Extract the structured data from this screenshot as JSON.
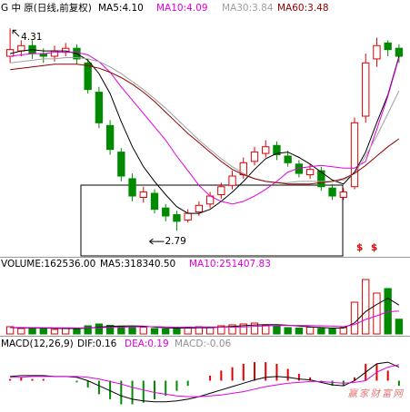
{
  "chart_data": [
    {
      "type": "candlestick",
      "title": "G 中 原(日线,前复权)",
      "open": [
        4.1,
        4.14,
        4.18,
        4.12,
        4.1,
        4.13,
        4.16,
        4.05,
        3.83,
        3.58,
        3.38,
        3.18,
        3.04,
        3.07,
        2.96,
        2.91,
        2.87,
        2.93,
        2.99,
        3.06,
        3.13,
        3.21,
        3.31,
        3.37,
        3.43,
        3.35,
        3.29,
        3.21,
        3.24,
        3.11,
        3.04,
        3.12,
        3.65,
        4.08,
        4.2,
        4.16
      ],
      "high": [
        4.31,
        4.22,
        4.22,
        4.16,
        4.18,
        4.2,
        4.19,
        4.08,
        3.87,
        3.62,
        3.41,
        3.22,
        3.12,
        3.1,
        2.99,
        2.94,
        2.95,
        3.01,
        3.08,
        3.15,
        3.24,
        3.34,
        3.42,
        3.47,
        3.46,
        3.39,
        3.32,
        3.29,
        3.27,
        3.14,
        3.11,
        3.64,
        4.12,
        4.24,
        4.22,
        4.19
      ],
      "low": [
        4.05,
        4.1,
        4.08,
        4.05,
        4.06,
        4.1,
        4.04,
        3.82,
        3.56,
        3.36,
        3.16,
        3.01,
        3.0,
        2.92,
        2.86,
        2.79,
        2.85,
        2.9,
        2.96,
        3.03,
        3.1,
        3.18,
        3.28,
        3.34,
        3.32,
        3.27,
        3.19,
        3.18,
        3.09,
        3.02,
        3.02,
        3.1,
        3.6,
        4.02,
        4.1,
        4.05
      ],
      "close": [
        4.15,
        4.18,
        4.12,
        4.1,
        4.14,
        4.16,
        4.08,
        3.85,
        3.6,
        3.4,
        3.2,
        3.05,
        3.08,
        2.95,
        2.9,
        2.86,
        2.92,
        2.98,
        3.05,
        3.12,
        3.2,
        3.3,
        3.38,
        3.42,
        3.36,
        3.3,
        3.22,
        3.25,
        3.12,
        3.05,
        3.08,
        3.6,
        4.05,
        4.18,
        4.15,
        4.1
      ],
      "up_color": "#e00000",
      "down_color": "#008a00",
      "series": [
        {
          "name": "MA5:4.10",
          "color": "#000000",
          "values": [
            4.12,
            4.14,
            4.15,
            4.14,
            4.14,
            4.14,
            4.12,
            4.07,
            3.97,
            3.82,
            3.61,
            3.42,
            3.27,
            3.16,
            3.06,
            2.97,
            2.92,
            2.92,
            2.95,
            3.01,
            3.08,
            3.16,
            3.25,
            3.33,
            3.37,
            3.38,
            3.34,
            3.29,
            3.23,
            3.17,
            3.14,
            3.23,
            3.38,
            3.6,
            3.81,
            4.1
          ]
        },
        {
          "name": "MA10:4.09",
          "color": "#e000e0",
          "values": [
            4.1,
            4.11,
            4.12,
            4.12,
            4.13,
            4.13,
            4.13,
            4.11,
            4.06,
            3.98,
            3.87,
            3.77,
            3.67,
            3.57,
            3.47,
            3.35,
            3.24,
            3.13,
            3.05,
            3.01,
            2.99,
            3.01,
            3.05,
            3.1,
            3.16,
            3.23,
            3.26,
            3.27,
            3.28,
            3.27,
            3.26,
            3.26,
            3.31,
            3.55,
            3.8,
            4.09
          ]
        },
        {
          "name": "MA30:3.84",
          "color": "#a0a0a0",
          "values": [
            4.05,
            4.06,
            4.07,
            4.08,
            4.08,
            4.09,
            4.09,
            4.08,
            4.06,
            4.02,
            3.97,
            3.91,
            3.85,
            3.78,
            3.71,
            3.63,
            3.55,
            3.47,
            3.4,
            3.33,
            3.27,
            3.22,
            3.18,
            3.16,
            3.15,
            3.15,
            3.16,
            3.16,
            3.16,
            3.16,
            3.17,
            3.22,
            3.35,
            3.5,
            3.67,
            3.84
          ]
        },
        {
          "name": "MA60:3.48",
          "color": "#900000",
          "values": [
            4.0,
            4.01,
            4.02,
            4.03,
            4.04,
            4.04,
            4.04,
            4.03,
            4.01,
            3.98,
            3.94,
            3.89,
            3.83,
            3.76,
            3.68,
            3.6,
            3.52,
            3.45,
            3.38,
            3.31,
            3.25,
            3.21,
            3.18,
            3.16,
            3.15,
            3.14,
            3.14,
            3.14,
            3.15,
            3.16,
            3.18,
            3.22,
            3.28,
            3.35,
            3.42,
            3.48
          ]
        }
      ],
      "high_label": 4.31,
      "low_label": 2.79,
      "signals": [
        "$",
        "$"
      ],
      "ylim": [
        2.6,
        4.4
      ]
    },
    {
      "type": "volume",
      "title": "VOLUME:162536.00",
      "values": [
        80000,
        60000,
        70000,
        55000,
        50000,
        60000,
        65000,
        90000,
        110000,
        95000,
        80000,
        70000,
        75000,
        60000,
        55000,
        65000,
        70000,
        80000,
        75000,
        90000,
        100000,
        110000,
        120000,
        95000,
        85000,
        70000,
        65000,
        75000,
        60000,
        55000,
        70000,
        350000,
        600000,
        450000,
        500000,
        162536
      ],
      "series": [
        {
          "name": "MA5:318340.50",
          "color": "#000000",
          "values": [
            70000,
            68000,
            66000,
            65000,
            63000,
            60000,
            60000,
            64000,
            75000,
            84000,
            88000,
            89000,
            86000,
            76000,
            67000,
            65000,
            65000,
            69000,
            69000,
            76000,
            83000,
            91000,
            99000,
            103000,
            102000,
            96000,
            87000,
            78000,
            71000,
            65000,
            65000,
            122000,
            247000,
            325000,
            394000,
            318340.5
          ]
        },
        {
          "name": "MA10:251407.83",
          "color": "#e000e0",
          "values": [
            72000,
            71000,
            70000,
            69000,
            68000,
            67000,
            66000,
            66000,
            69000,
            72000,
            75000,
            78000,
            80000,
            80000,
            78000,
            76000,
            76000,
            78000,
            77000,
            76000,
            75000,
            78000,
            84000,
            89000,
            92000,
            94000,
            94000,
            93000,
            90000,
            86000,
            80000,
            104000,
            160000,
            200000,
            245000,
            251407.83
          ]
        }
      ],
      "ylim": [
        0,
        700000
      ]
    },
    {
      "type": "macd",
      "title": "MACD(12,26,9)",
      "series": [
        {
          "name": "DIF:0.16",
          "color": "#000000",
          "values": [
            0.05,
            0.06,
            0.06,
            0.06,
            0.05,
            0.05,
            0.04,
            0.0,
            -0.06,
            -0.12,
            -0.18,
            -0.22,
            -0.24,
            -0.25,
            -0.25,
            -0.24,
            -0.22,
            -0.19,
            -0.15,
            -0.11,
            -0.07,
            -0.03,
            0.01,
            0.04,
            0.05,
            0.04,
            0.02,
            0.01,
            -0.02,
            -0.05,
            -0.06,
            0.0,
            0.1,
            0.2,
            0.22,
            0.16
          ]
        },
        {
          "name": "DEA:0.19",
          "color": "#e000e0",
          "values": [
            0.04,
            0.04,
            0.05,
            0.05,
            0.05,
            0.05,
            0.05,
            0.04,
            0.02,
            -0.01,
            -0.04,
            -0.08,
            -0.11,
            -0.14,
            -0.16,
            -0.18,
            -0.19,
            -0.19,
            -0.18,
            -0.17,
            -0.15,
            -0.13,
            -0.1,
            -0.07,
            -0.05,
            -0.03,
            -0.02,
            -0.01,
            -0.01,
            -0.02,
            -0.03,
            -0.02,
            0.0,
            0.1,
            0.16,
            0.19
          ]
        }
      ],
      "histogram": {
        "name": "MACD:-0.06",
        "color": "#909090",
        "values": [
          0.02,
          0.04,
          0.02,
          0.02,
          0,
          0,
          -0.02,
          -0.08,
          -0.16,
          -0.22,
          -0.28,
          -0.28,
          -0.26,
          -0.22,
          -0.18,
          -0.12,
          -0.06,
          0,
          0.06,
          0.12,
          0.16,
          0.2,
          0.22,
          0.22,
          0.2,
          0.14,
          0.08,
          0.04,
          -0.02,
          -0.06,
          -0.06,
          0.04,
          0.2,
          0.2,
          0.12,
          -0.06
        ]
      },
      "up_color": "#e00000",
      "down_color": "#008a00",
      "ylim": [
        -0.35,
        0.35
      ],
      "watermark": "赢家财富网"
    }
  ]
}
